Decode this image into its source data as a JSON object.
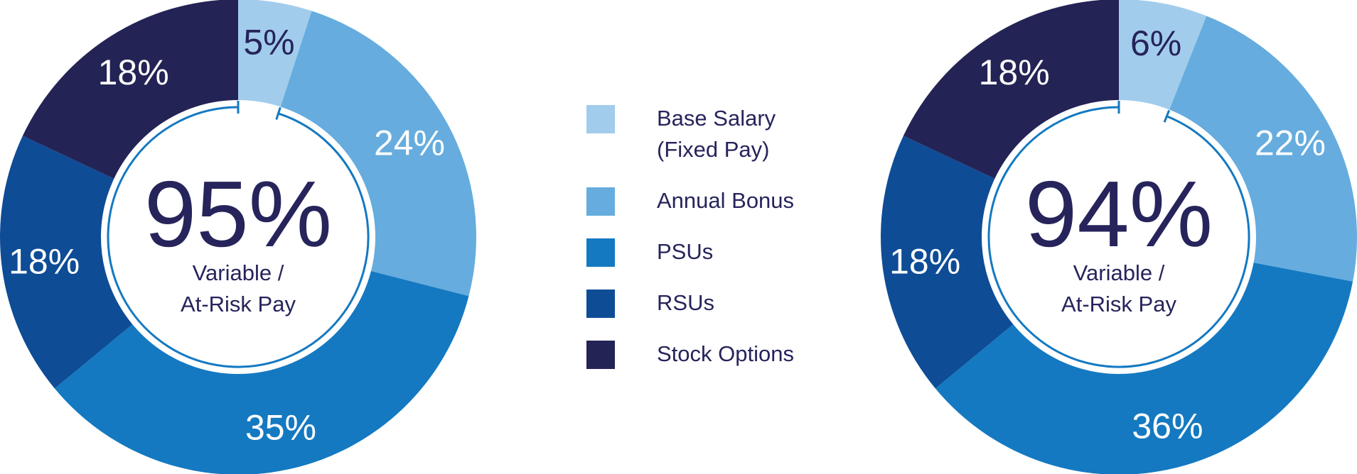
{
  "colors": {
    "base_salary": "#a2cceb",
    "annual_bonus": "#66acde",
    "psus": "#1479c1",
    "rsus": "#0e4c96",
    "stock_options": "#242355",
    "text_dark": "#26245b",
    "ring": "#1479c1"
  },
  "legend": {
    "items": [
      {
        "key": "base_salary",
        "label_lines": [
          "Base Salary",
          "(Fixed Pay)"
        ]
      },
      {
        "key": "annual_bonus",
        "label_lines": [
          "Annual Bonus"
        ]
      },
      {
        "key": "psus",
        "label_lines": [
          "PSUs"
        ]
      },
      {
        "key": "rsus",
        "label_lines": [
          "RSUs"
        ]
      },
      {
        "key": "stock_options",
        "label_lines": [
          "Stock Options"
        ]
      }
    ]
  },
  "chart_data": [
    {
      "type": "pie",
      "style": "donut",
      "center_value": "95%",
      "center_label_lines": [
        "Variable /",
        "At-Risk Pay"
      ],
      "categories": [
        "Base Salary (Fixed Pay)",
        "Annual Bonus",
        "PSUs",
        "RSUs",
        "Stock Options"
      ],
      "values": [
        5,
        24,
        35,
        18,
        18
      ],
      "labels": [
        "5%",
        "24%",
        "35%",
        "18%",
        "18%"
      ]
    },
    {
      "type": "pie",
      "style": "donut",
      "center_value": "94%",
      "center_label_lines": [
        "Variable /",
        "At-Risk Pay"
      ],
      "categories": [
        "Base Salary (Fixed Pay)",
        "Annual Bonus",
        "PSUs",
        "RSUs",
        "Stock Options"
      ],
      "values": [
        6,
        22,
        36,
        18,
        18
      ],
      "labels": [
        "6%",
        "22%",
        "36%",
        "18%",
        "18%"
      ]
    }
  ]
}
